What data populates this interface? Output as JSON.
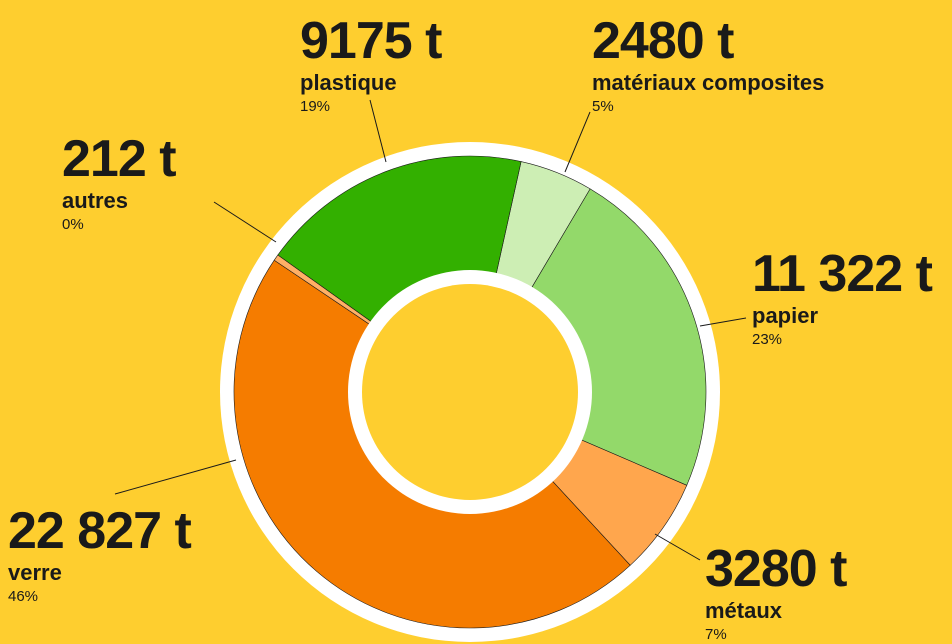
{
  "chart_data": {
    "type": "pie",
    "donut": true,
    "categories": [
      "matériaux composites",
      "papier",
      "métaux",
      "verre",
      "autres",
      "plastique"
    ],
    "values": [
      2480,
      11322,
      3280,
      22827,
      212,
      9175
    ],
    "value_labels": [
      "2480 t",
      "11 322 t",
      "3280 t",
      "22 827 t",
      "212 t",
      "9175 t"
    ],
    "percent_labels": [
      "5%",
      "23%",
      "7%",
      "46%",
      "0%",
      "19%"
    ],
    "colors": [
      "#cdeeb4",
      "#93d96a",
      "#ffa64d",
      "#f57c00",
      "#ffb066",
      "#33b000"
    ]
  }
}
